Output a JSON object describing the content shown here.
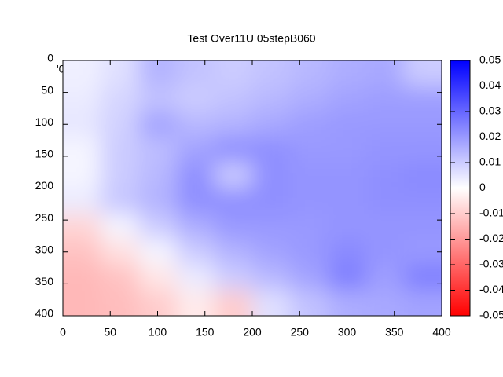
{
  "chart_data": {
    "type": "heatmap",
    "title": "Test Over11U 05stepB060",
    "annotation": "'0",
    "x": [
      20,
      60,
      100,
      140,
      180,
      220,
      260,
      300,
      340,
      380
    ],
    "y": [
      20,
      60,
      100,
      140,
      180,
      220,
      260,
      300,
      340,
      380
    ],
    "values": [
      [
        0.003,
        0.006,
        0.015,
        0.012,
        0.01,
        0.012,
        0.014,
        0.016,
        0.017,
        0.01
      ],
      [
        0.004,
        0.008,
        0.012,
        0.01,
        0.012,
        0.014,
        0.016,
        0.018,
        0.019,
        0.019
      ],
      [
        0.005,
        0.009,
        0.018,
        0.014,
        0.015,
        0.017,
        0.019,
        0.02,
        0.02,
        0.02
      ],
      [
        0.002,
        0.01,
        0.013,
        0.018,
        0.022,
        0.022,
        0.02,
        0.02,
        0.021,
        0.021
      ],
      [
        0.002,
        0.01,
        0.014,
        0.022,
        0.01,
        0.022,
        0.021,
        0.021,
        0.022,
        0.023
      ],
      [
        0.004,
        0.011,
        0.015,
        0.022,
        0.022,
        0.022,
        0.021,
        0.021,
        0.022,
        0.022
      ],
      [
        -0.008,
        0.002,
        0.01,
        0.016,
        0.02,
        0.02,
        0.02,
        0.021,
        0.021,
        0.021
      ],
      [
        -0.012,
        -0.006,
        0.002,
        0.01,
        0.015,
        0.018,
        0.02,
        0.023,
        0.021,
        0.02
      ],
      [
        -0.014,
        -0.012,
        -0.005,
        0.004,
        0.01,
        0.014,
        0.018,
        0.025,
        0.019,
        0.025
      ],
      [
        -0.014,
        -0.013,
        -0.01,
        -0.004,
        -0.01,
        0.006,
        0.012,
        0.016,
        0.017,
        0.018
      ]
    ],
    "xlim": [
      0,
      400
    ],
    "xticks": [
      0,
      50,
      100,
      150,
      200,
      250,
      300,
      350,
      400
    ],
    "ylim": [
      0,
      400
    ],
    "yticks": [
      0,
      50,
      100,
      150,
      200,
      250,
      300,
      350,
      400
    ],
    "y_reversed": true,
    "clim": [
      -0.05,
      0.05
    ],
    "cticks": [
      -0.05,
      -0.04,
      -0.03,
      -0.02,
      -0.01,
      0,
      0.01,
      0.02,
      0.03,
      0.04,
      0.05
    ],
    "colors": [
      "#ff0000",
      "#ffffff",
      "#0000ff"
    ]
  }
}
